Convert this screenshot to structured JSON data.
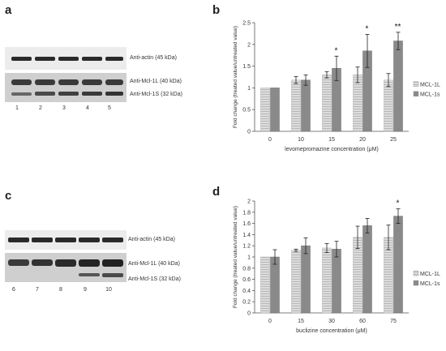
{
  "panels": {
    "a": {
      "letter": "a",
      "blot_labels": [
        "Anti-actin (45 kDa)",
        "Anti-Mcl-1L (40 kDa)",
        "Anti-Mcl-1S (32 kDa)"
      ],
      "lanes": [
        "1",
        "2",
        "3",
        "4",
        "5"
      ]
    },
    "c": {
      "letter": "c",
      "blot_labels": [
        "Anti-actin (45 kDa)",
        "Anti-Mcl-1L (40 kDa)",
        "Anti-Mcl-1S (32 kDa)"
      ],
      "lanes": [
        "6",
        "7",
        "8",
        "9",
        "10"
      ]
    }
  },
  "colors": {
    "mcl1l": "#dcdcdc",
    "mcl1s": "#8a8a8a",
    "band_dark": "#2a2a2a",
    "membrane": "#e6e6e6"
  },
  "chart_data": [
    {
      "panel": "b",
      "type": "bar",
      "xlabel": "levomepromazine concentration (μM)",
      "ylabel": "Fold change (treated value/untreated value)",
      "categories": [
        "0",
        "10",
        "15",
        "20",
        "25"
      ],
      "ylim": [
        0,
        2.5
      ],
      "yticks": [
        "0",
        "0.5",
        "1",
        "1.5",
        "2",
        "2.5"
      ],
      "series": [
        {
          "name": "MCL-1L",
          "values": [
            1.0,
            1.18,
            1.3,
            1.3,
            1.18
          ],
          "errors": [
            0.0,
            0.08,
            0.07,
            0.18,
            0.15
          ]
        },
        {
          "name": "MCL-1s",
          "values": [
            1.0,
            1.18,
            1.45,
            1.85,
            2.08
          ],
          "errors": [
            0.0,
            0.12,
            0.28,
            0.38,
            0.2
          ]
        }
      ],
      "annotations": [
        "",
        "",
        "*",
        "*",
        "**"
      ],
      "legend": "right"
    },
    {
      "panel": "d",
      "type": "bar",
      "xlabel": "buclizine concentration (μM)",
      "ylabel": "Fold change (treated value/untreated value)",
      "categories": [
        "0",
        "15",
        "30",
        "60",
        "75"
      ],
      "ylim": [
        0,
        2
      ],
      "yticks": [
        "0",
        "0.2",
        "0.4",
        "0.6",
        "0.8",
        "1",
        "1.2",
        "1.4",
        "1.6",
        "1.8",
        "2"
      ],
      "series": [
        {
          "name": "MCL-1L",
          "values": [
            1.0,
            1.12,
            1.16,
            1.35,
            1.35
          ],
          "errors": [
            0.0,
            0.02,
            0.08,
            0.2,
            0.22
          ]
        },
        {
          "name": "MCL-1s",
          "values": [
            1.0,
            1.2,
            1.14,
            1.56,
            1.73
          ],
          "errors": [
            0.13,
            0.14,
            0.14,
            0.13,
            0.13
          ]
        }
      ],
      "annotations": [
        "",
        "",
        "",
        "",
        "*"
      ],
      "legend": "right"
    }
  ]
}
